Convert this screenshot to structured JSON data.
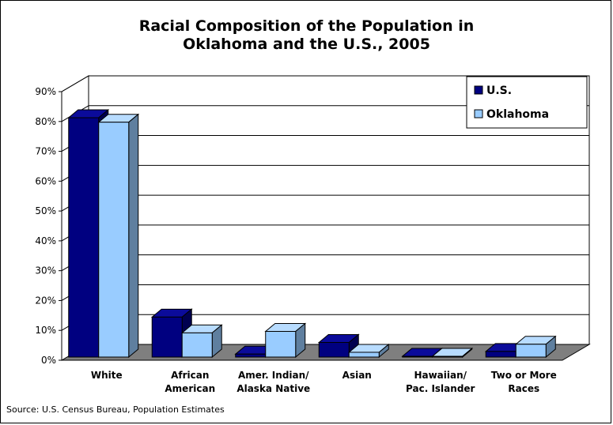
{
  "colors": {
    "us_front": "#000080",
    "us_top": "#0b0b9a",
    "us_side": "#000050",
    "ok_front": "#99ccff",
    "ok_top": "#b8dcff",
    "ok_side": "#5f7f9f",
    "floor": "#7f7f7f",
    "grid": "#000000"
  },
  "chart_data": {
    "type": "bar",
    "title": "Racial Composition of the Population in Oklahoma and the U.S., 2005",
    "title_lines": [
      "Racial Composition of the Population in",
      "Oklahoma and the U.S., 2005"
    ],
    "categories": [
      [
        "White"
      ],
      [
        "African",
        "American"
      ],
      [
        "Amer. Indian/",
        "Alaska Native"
      ],
      [
        "Asian"
      ],
      [
        "Hawaiian/",
        "Pac. Islander"
      ],
      [
        "Two or More",
        "Races"
      ]
    ],
    "series": [
      {
        "name": "U.S.",
        "values": [
          80.2,
          13.4,
          1.0,
          4.9,
          0.2,
          1.9
        ]
      },
      {
        "name": "Oklahoma",
        "values": [
          78.7,
          8.1,
          8.6,
          1.6,
          0.1,
          4.3
        ]
      }
    ],
    "ylim": [
      0,
      90
    ],
    "yticks": [
      "0%",
      "10%",
      "20%",
      "30%",
      "40%",
      "50%",
      "60%",
      "70%",
      "80%",
      "90%"
    ],
    "legend_position": "top-right",
    "grid": true,
    "source": "Source: U.S. Census Bureau, Population Estimates"
  }
}
